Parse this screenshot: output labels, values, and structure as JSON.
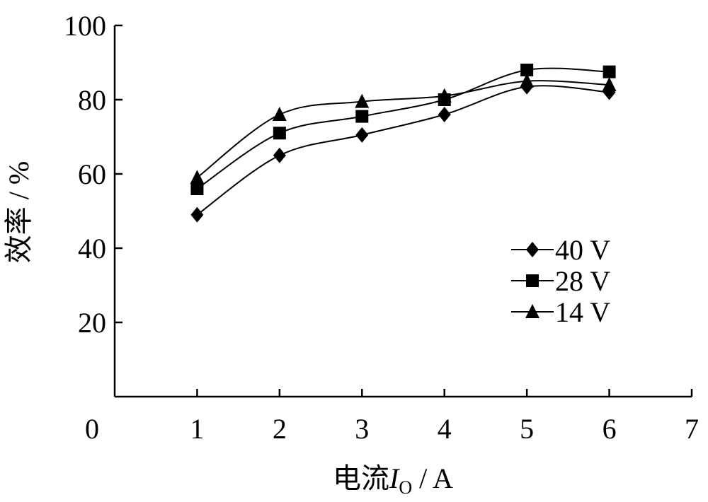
{
  "chart_data": {
    "type": "line",
    "xlabel": {
      "main": "电流",
      "var": "I",
      "sub": "O",
      "unit": " / A"
    },
    "ylabel": "效率 / %",
    "xlim": [
      0,
      7
    ],
    "ylim": [
      0,
      100
    ],
    "x_ticks": [
      "0",
      "1",
      "2",
      "3",
      "4",
      "5",
      "6",
      "7"
    ],
    "y_ticks": [
      "20",
      "40",
      "60",
      "80",
      "100"
    ],
    "grid": false,
    "legend_position": "right",
    "x": [
      1,
      2,
      3,
      4,
      5,
      6
    ],
    "series": [
      {
        "name": "40 V",
        "marker": "diamond",
        "values": [
          49,
          65,
          70.5,
          76,
          83.5,
          82
        ]
      },
      {
        "name": "28 V",
        "marker": "square",
        "values": [
          56,
          71,
          75.5,
          80,
          88,
          87.5
        ]
      },
      {
        "name": "14 V",
        "marker": "triangle",
        "values": [
          59,
          76,
          79.5,
          81,
          85,
          84
        ]
      }
    ],
    "color": "#000000"
  }
}
